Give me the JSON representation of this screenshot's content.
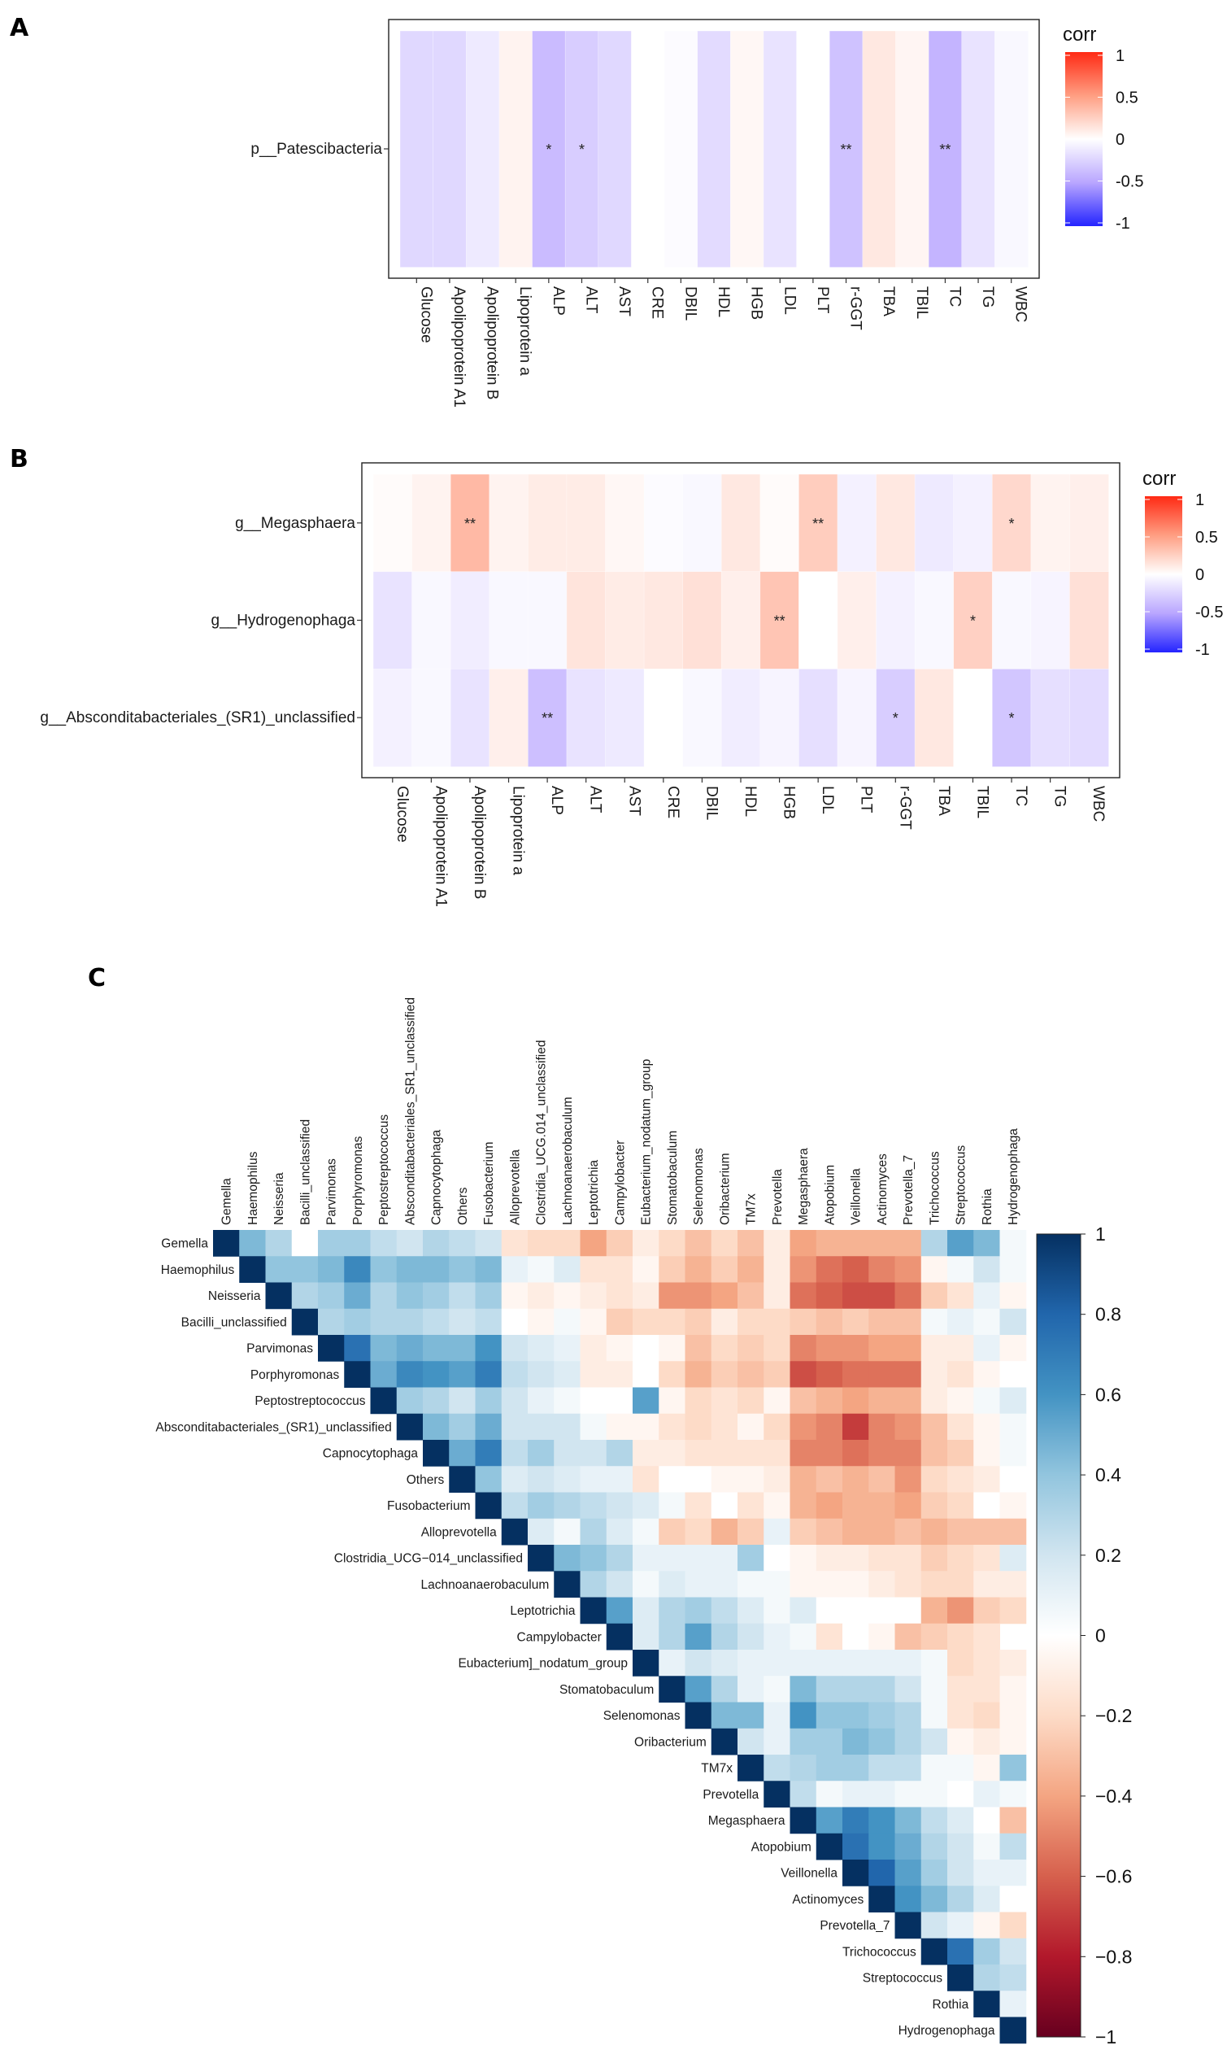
{
  "chart_data": [
    {
      "panel": "A",
      "type": "heatmap",
      "rows": [
        "p__Patescibacteria"
      ],
      "columns": [
        "Glucose",
        "Apolipoprotein A1",
        "Apolipoprotein B",
        "Lipoprotein a",
        "ALP",
        "ALT",
        "AST",
        "CRE",
        "DBIL",
        "HDL",
        "HGB",
        "LDL",
        "PLT",
        "r-GGT",
        "TBA",
        "TBIL",
        "TC",
        "TG",
        "WBC"
      ],
      "values": [
        [
          -0.22,
          -0.22,
          -0.12,
          0.06,
          -0.38,
          -0.28,
          -0.22,
          0.0,
          -0.02,
          -0.2,
          0.04,
          -0.16,
          0.0,
          -0.34,
          0.12,
          0.05,
          -0.42,
          -0.16,
          -0.04
        ]
      ],
      "significance": [
        [
          "",
          "",
          "",
          "",
          "*",
          "*",
          "",
          "",
          "",
          "",
          "",
          "",
          "",
          "**",
          "",
          "",
          "**",
          "",
          ""
        ]
      ],
      "legend_title": "corr",
      "legend_ticks": [
        "1",
        "0.5",
        "0",
        "-0.5",
        "-1"
      ],
      "range": [
        -1,
        1
      ]
    },
    {
      "panel": "B",
      "type": "heatmap",
      "rows": [
        "g__Megasphaera",
        "g__Hydrogenophaga",
        "g__Absconditabacteriales_(SR1)_unclassified"
      ],
      "columns": [
        "Glucose",
        "Apolipoprotein A1",
        "Apolipoprotein B",
        "Lipoprotein a",
        "ALP",
        "ALT",
        "AST",
        "CRE",
        "DBIL",
        "HDL",
        "HGB",
        "LDL",
        "PLT",
        "r-GGT",
        "TBA",
        "TBIL",
        "TC",
        "TG",
        "WBC"
      ],
      "values": [
        [
          0.02,
          0.06,
          0.36,
          0.06,
          0.1,
          0.1,
          0.04,
          -0.02,
          -0.04,
          0.12,
          0.02,
          0.26,
          -0.08,
          0.12,
          -0.12,
          -0.08,
          0.2,
          0.06,
          0.08
        ],
        [
          -0.16,
          -0.04,
          -0.1,
          -0.04,
          -0.04,
          0.14,
          0.1,
          0.12,
          0.16,
          0.08,
          0.3,
          0.0,
          0.08,
          -0.08,
          -0.04,
          0.24,
          -0.04,
          -0.06,
          0.16
        ],
        [
          -0.08,
          -0.04,
          -0.16,
          0.08,
          -0.36,
          -0.16,
          -0.12,
          0.0,
          -0.04,
          -0.1,
          -0.06,
          -0.18,
          -0.06,
          -0.28,
          0.12,
          0.0,
          -0.32,
          -0.18,
          -0.2
        ]
      ],
      "significance": [
        [
          "",
          "",
          "**",
          "",
          "",
          "",
          "",
          "",
          "",
          "",
          "",
          "**",
          "",
          "",
          "",
          "",
          "*",
          "",
          ""
        ],
        [
          "",
          "",
          "",
          "",
          "",
          "",
          "",
          "",
          "",
          "",
          "**",
          "",
          "",
          "",
          "",
          "*",
          "",
          "",
          ""
        ],
        [
          "",
          "",
          "",
          "",
          "**",
          "",
          "",
          "",
          "",
          "",
          "",
          "",
          "",
          "*",
          "",
          "",
          "*",
          "",
          ""
        ]
      ],
      "legend_title": "corr",
      "legend_ticks": [
        "1",
        "0.5",
        "0",
        "-0.5",
        "-1"
      ],
      "range": [
        -1,
        1
      ]
    },
    {
      "panel": "C",
      "type": "heatmap",
      "variables": [
        "Gemella",
        "Haemophilus",
        "Neisseria",
        "Bacilli_unclassified",
        "Parvimonas",
        "Porphyromonas",
        "Peptostreptococcus",
        "Absconditabacteriales_(SR1)_unclassified",
        "Capnocytophaga",
        "Others",
        "Fusobacterium",
        "Alloprevotella",
        "Clostridia_UCG-014_unclassified",
        "Lachnoanaerobaculum",
        "Leptotrichia",
        "Campylobacter",
        "Eubacterium]_nodatum_group",
        "Stomatobaculum",
        "Selenomonas",
        "Oribacterium",
        "TM7x",
        "Prevotella",
        "Megasphaera",
        "Atopobium",
        "Veillonella",
        "Actinomyces",
        "Prevotella_7",
        "Trichococcus",
        "Streptococcus",
        "Rothia",
        "Hydrogenophaga"
      ],
      "col_labels": [
        "Gemella",
        "Haemophilus",
        "Neisseria",
        "Bacilli_unclassified",
        "Parvimonas",
        "Porphyromonas",
        "Peptostreptococcus",
        "Absconditabacteriales_SR1_unclassified",
        "Capnocytophaga",
        "Others",
        "Fusobacterium",
        "Alloprevotella",
        "Clostridia_UCG.014_unclassified",
        "Lachnoanaerobaculum",
        "Leptotrichia",
        "Campylobacter",
        "Eubacterium_nodatum_group",
        "Stomatobaculum",
        "Selenomonas",
        "Oribacterium",
        "TM7x",
        "Prevotella",
        "Megasphaera",
        "Atopobium",
        "Veillonella",
        "Actinomyces",
        "Prevotella_7",
        "Trichococcus",
        "Streptococcus",
        "Rothia",
        "Hydrogenophaga"
      ],
      "row_labels": [
        "Gemella",
        "Haemophilus",
        "Neisseria",
        "Bacilli_unclassified",
        "Parvimonas",
        "Porphyromonas",
        "Peptostreptococcus",
        "Absconditabacteriales_(SR1)_unclassified",
        "Capnocytophaga",
        "Others",
        "Fusobacterium",
        "Alloprevotella",
        "Clostridia_UCG−014_unclassified",
        "Lachnoanaerobaculum",
        "Leptotrichia",
        "Campylobacter",
        "Eubacterium]_nodatum_group",
        "Stomatobaculum",
        "Selenomonas",
        "Oribacterium",
        "TM7x",
        "Prevotella",
        "Megasphaera",
        "Atopobium",
        "Veillonella",
        "Actinomyces",
        "Prevotella_7",
        "Trichococcus",
        "Streptococcus",
        "Rothia",
        "Hydrogenophaga"
      ],
      "upper_triangle": [
        [
          1,
          0.45,
          0.3,
          0.0,
          0.35,
          0.35,
          0.25,
          0.2,
          0.3,
          0.25,
          0.2,
          -0.15,
          -0.2,
          -0.2,
          -0.4,
          -0.25,
          -0.1,
          -0.2,
          -0.3,
          -0.2,
          -0.3,
          -0.1,
          -0.4,
          -0.35,
          -0.35,
          -0.35,
          -0.35,
          0.3,
          0.55,
          0.45,
          0.05
        ],
        [
          1,
          0.4,
          0.4,
          0.45,
          0.65,
          0.4,
          0.45,
          0.45,
          0.4,
          0.45,
          0.1,
          0.05,
          0.15,
          -0.15,
          -0.15,
          -0.05,
          -0.25,
          -0.35,
          -0.25,
          -0.35,
          -0.1,
          -0.45,
          -0.55,
          -0.6,
          -0.5,
          -0.45,
          -0.05,
          0.05,
          0.2,
          0.05
        ],
        [
          1,
          0.3,
          0.35,
          0.5,
          0.3,
          0.4,
          0.35,
          0.25,
          0.35,
          -0.05,
          -0.1,
          -0.05,
          -0.1,
          -0.15,
          -0.1,
          -0.45,
          -0.45,
          -0.4,
          -0.3,
          -0.1,
          -0.55,
          -0.6,
          -0.65,
          -0.65,
          -0.55,
          -0.25,
          -0.15,
          0.1,
          -0.05
        ],
        [
          1,
          0.3,
          0.35,
          0.3,
          0.3,
          0.25,
          0.2,
          0.25,
          0.0,
          -0.05,
          0.05,
          -0.05,
          -0.25,
          -0.2,
          -0.2,
          -0.25,
          -0.1,
          -0.2,
          -0.2,
          -0.25,
          -0.3,
          -0.25,
          -0.3,
          -0.3,
          0.05,
          0.1,
          0.05,
          0.2
        ],
        [
          1,
          0.75,
          0.45,
          0.5,
          0.45,
          0.45,
          0.6,
          0.2,
          0.15,
          0.1,
          -0.1,
          -0.05,
          0.0,
          -0.05,
          -0.3,
          -0.2,
          -0.25,
          -0.2,
          -0.5,
          -0.45,
          -0.45,
          -0.4,
          -0.4,
          -0.1,
          -0.1,
          0.1,
          -0.05
        ],
        [
          1,
          0.5,
          0.65,
          0.6,
          0.55,
          0.7,
          0.25,
          0.2,
          0.15,
          -0.1,
          -0.1,
          0.0,
          -0.2,
          -0.35,
          -0.25,
          -0.3,
          -0.25,
          -0.65,
          -0.6,
          -0.55,
          -0.55,
          -0.55,
          -0.1,
          -0.15,
          -0.05,
          0.0
        ],
        [
          1,
          0.35,
          0.3,
          0.2,
          0.35,
          0.2,
          0.1,
          0.05,
          0.0,
          0.0,
          0.55,
          -0.05,
          -0.2,
          -0.15,
          -0.2,
          -0.05,
          -0.3,
          -0.35,
          -0.4,
          -0.35,
          -0.35,
          -0.1,
          -0.05,
          0.05,
          0.15
        ],
        [
          1,
          0.45,
          0.35,
          0.5,
          0.2,
          0.2,
          0.2,
          0.05,
          -0.05,
          -0.05,
          -0.15,
          -0.2,
          -0.15,
          -0.05,
          -0.2,
          -0.45,
          -0.5,
          -0.7,
          -0.5,
          -0.45,
          -0.3,
          -0.15,
          -0.05,
          0.05
        ],
        [
          1,
          0.5,
          0.7,
          0.25,
          0.35,
          0.2,
          0.2,
          0.3,
          -0.1,
          -0.1,
          -0.15,
          -0.15,
          -0.15,
          -0.15,
          -0.5,
          -0.5,
          -0.55,
          -0.5,
          -0.5,
          -0.3,
          -0.25,
          -0.05,
          0.05
        ],
        [
          1,
          0.4,
          0.15,
          0.2,
          0.15,
          0.1,
          0.1,
          -0.15,
          0.0,
          0.0,
          -0.05,
          -0.05,
          -0.1,
          -0.35,
          -0.3,
          -0.35,
          -0.3,
          -0.45,
          -0.2,
          -0.15,
          -0.1,
          0.0
        ],
        [
          1,
          0.25,
          0.35,
          0.3,
          0.25,
          0.2,
          0.15,
          0.05,
          -0.15,
          0.0,
          -0.15,
          -0.05,
          -0.35,
          -0.4,
          -0.35,
          -0.35,
          -0.4,
          -0.25,
          -0.2,
          0.0,
          -0.05
        ],
        [
          1,
          0.15,
          0.05,
          0.3,
          0.15,
          0.05,
          -0.25,
          -0.2,
          -0.35,
          -0.25,
          0.1,
          -0.25,
          -0.3,
          -0.35,
          -0.35,
          -0.3,
          -0.35,
          -0.3,
          -0.3,
          -0.3
        ],
        [
          1,
          0.45,
          0.4,
          0.3,
          0.1,
          0.1,
          0.1,
          0.1,
          0.35,
          0.0,
          -0.05,
          -0.1,
          -0.1,
          -0.15,
          -0.15,
          -0.25,
          -0.2,
          -0.15,
          0.15
        ],
        [
          1,
          0.3,
          0.2,
          0.05,
          0.15,
          0.1,
          0.1,
          0.05,
          0.05,
          -0.05,
          -0.05,
          -0.05,
          -0.1,
          -0.15,
          -0.2,
          -0.2,
          -0.1,
          -0.1
        ],
        [
          1,
          0.55,
          0.15,
          0.3,
          0.35,
          0.25,
          0.15,
          0.05,
          0.15,
          0.0,
          0.0,
          0.0,
          0.0,
          -0.35,
          -0.45,
          -0.25,
          -0.2
        ],
        [
          1,
          0.15,
          0.3,
          0.55,
          0.3,
          0.2,
          0.1,
          0.05,
          -0.15,
          0.0,
          -0.05,
          -0.3,
          -0.25,
          -0.2,
          -0.15
        ],
        [
          1,
          0.1,
          0.2,
          0.15,
          0.1,
          0.1,
          0.1,
          0.1,
          0.1,
          0.1,
          0.1,
          0.05,
          -0.2,
          -0.15,
          -0.1
        ],
        [
          1,
          0.55,
          0.3,
          0.1,
          0.05,
          0.45,
          0.3,
          0.3,
          0.3,
          0.2,
          0.05,
          -0.15,
          -0.15,
          -0.05
        ],
        [
          1,
          0.45,
          0.45,
          0.1,
          0.6,
          0.4,
          0.4,
          0.35,
          0.3,
          0.05,
          -0.15,
          -0.2,
          -0.05
        ],
        [
          1,
          0.2,
          0.1,
          0.35,
          0.35,
          0.45,
          0.4,
          0.3,
          0.2,
          -0.05,
          -0.1,
          -0.05
        ],
        [
          1,
          0.25,
          0.3,
          0.35,
          0.35,
          0.25,
          0.25,
          0.05,
          0.05,
          -0.05,
          0.4
        ],
        [
          1,
          0.25,
          0.05,
          0.1,
          0.1,
          0.05,
          0.05,
          0.0,
          0.1,
          0.05
        ],
        [
          1,
          0.55,
          0.7,
          0.6,
          0.45,
          0.25,
          0.15,
          0.0,
          -0.3
        ],
        [
          1,
          0.75,
          0.6,
          0.5,
          0.3,
          0.2,
          0.05,
          0.25
        ],
        [
          1,
          0.8,
          0.55,
          0.35,
          0.2,
          0.1,
          0.1
        ],
        [
          1,
          0.6,
          0.45,
          0.3,
          0.15,
          0.0
        ],
        [
          1,
          0.2,
          0.1,
          -0.05,
          -0.2
        ],
        [
          1,
          0.75,
          0.35,
          0.2
        ],
        [
          1,
          0.3,
          0.25
        ],
        [
          1,
          0.1
        ],
        [
          1
        ]
      ],
      "legend_ticks": [
        "1",
        "0.8",
        "0.6",
        "0.4",
        "0.2",
        "0",
        "−0.2",
        "−0.4",
        "−0.6",
        "−0.8",
        "−1"
      ],
      "range": [
        -1,
        1
      ]
    }
  ],
  "panel_labels": [
    "A",
    "B",
    "C"
  ]
}
